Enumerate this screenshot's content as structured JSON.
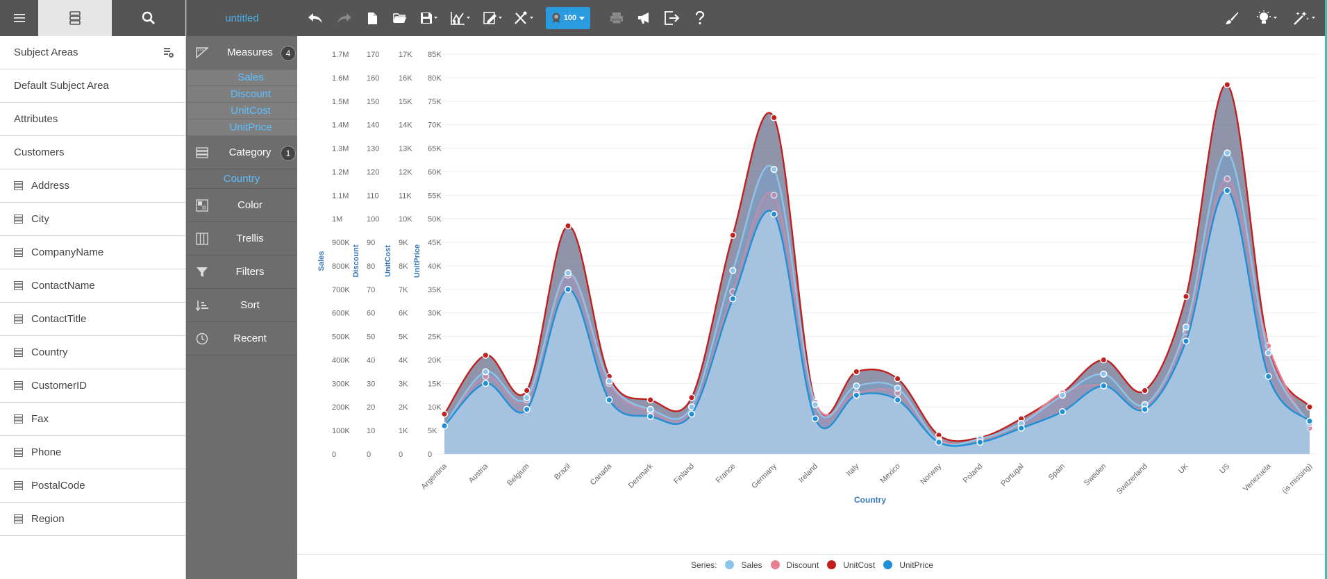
{
  "left": {
    "header_icons": [
      "menu-icon",
      "database-icon",
      "search-icon"
    ],
    "rows": [
      {
        "label": "Subject Areas",
        "icon": null
      },
      {
        "label": "Default Subject Area",
        "icon": null
      },
      {
        "label": "Attributes",
        "icon": null
      },
      {
        "label": "Customers",
        "icon": null
      },
      {
        "label": "Address",
        "icon": "attribute-icon"
      },
      {
        "label": "City",
        "icon": "attribute-icon"
      },
      {
        "label": "CompanyName",
        "icon": "attribute-icon"
      },
      {
        "label": "ContactName",
        "icon": "attribute-icon"
      },
      {
        "label": "ContactTitle",
        "icon": "attribute-icon"
      },
      {
        "label": "Country",
        "icon": "attribute-icon"
      },
      {
        "label": "CustomerID",
        "icon": "attribute-icon"
      },
      {
        "label": "Fax",
        "icon": "attribute-icon"
      },
      {
        "label": "Phone",
        "icon": "attribute-icon"
      },
      {
        "label": "PostalCode",
        "icon": "attribute-icon"
      },
      {
        "label": "Region",
        "icon": "attribute-icon"
      }
    ]
  },
  "mid": {
    "title": "untitled",
    "measures": {
      "label": "Measures",
      "count": "4",
      "items": [
        "Sales",
        "Discount",
        "UnitCost",
        "UnitPrice"
      ]
    },
    "category": {
      "label": "Category",
      "count": "1",
      "items": [
        "Country"
      ]
    },
    "color": {
      "label": "Color"
    },
    "trellis": {
      "label": "Trellis"
    },
    "filters": {
      "label": "Filters"
    },
    "sort": {
      "label": "Sort"
    },
    "recent": {
      "label": "Recent"
    }
  },
  "toolbar": {
    "badge": "100",
    "icons": [
      "undo-icon",
      "redo-icon",
      "new-file-icon",
      "open-folder-icon",
      "save-icon",
      "chart-type-icon",
      "edit-chart-icon",
      "tools-icon",
      "badge-icon",
      "print-icon",
      "announce-icon",
      "export-icon",
      "help-icon",
      "brush-icon",
      "lightbulb-icon",
      "magic-wand-icon"
    ]
  },
  "colors": {
    "sales": "#8cc4ec",
    "discount": "#e88091",
    "unitcost": "#c0201e",
    "unitprice": "#1f8fd6",
    "accent": "#4aaee8"
  },
  "chart_data": {
    "type": "area",
    "xlabel": "Country",
    "categories": [
      "Argentina",
      "Austria",
      "Belgium",
      "Brazil",
      "Canada",
      "Denmark",
      "Finland",
      "France",
      "Germany",
      "Ireland",
      "Italy",
      "Mexico",
      "Norway",
      "Poland",
      "Portugal",
      "Spain",
      "Sweden",
      "Switzerland",
      "UK",
      "US",
      "Venezuela",
      "(is missing)"
    ],
    "axes": [
      {
        "name": "Sales",
        "ticks": [
          "0",
          "100K",
          "200K",
          "300K",
          "400K",
          "500K",
          "600K",
          "700K",
          "800K",
          "900K",
          "1M",
          "1.1M",
          "1.2M",
          "1.3M",
          "1.4M",
          "1.5M",
          "1.6M",
          "1.7M"
        ],
        "ylim": [
          0,
          1700000
        ]
      },
      {
        "name": "Discount",
        "ticks": [
          "0",
          "10",
          "20",
          "30",
          "40",
          "50",
          "60",
          "70",
          "80",
          "90",
          "100",
          "110",
          "120",
          "130",
          "140",
          "150",
          "160",
          "170"
        ],
        "ylim": [
          0,
          170
        ]
      },
      {
        "name": "UnitCost",
        "ticks": [
          "0",
          "1K",
          "2K",
          "3K",
          "4K",
          "5K",
          "6K",
          "7K",
          "8K",
          "9K",
          "10K",
          "11K",
          "12K",
          "13K",
          "14K",
          "15K",
          "16K",
          "17K"
        ],
        "ylim": [
          0,
          17000
        ]
      },
      {
        "name": "UnitPrice",
        "ticks": [
          "0",
          "5K",
          "10K",
          "15K",
          "20K",
          "25K",
          "30K",
          "35K",
          "40K",
          "45K",
          "50K",
          "55K",
          "60K",
          "65K",
          "70K",
          "75K",
          "80K",
          "85K"
        ],
        "ylim": [
          0,
          85000
        ]
      }
    ],
    "series": [
      {
        "name": "Sales",
        "axis": 0,
        "values": [
          120000,
          350000,
          240000,
          770000,
          310000,
          190000,
          200000,
          780000,
          1210000,
          210000,
          290000,
          280000,
          55000,
          65000,
          130000,
          250000,
          340000,
          210000,
          540000,
          1280000,
          430000,
          130000
        ]
      },
      {
        "name": "Discount",
        "axis": 1,
        "values": [
          12,
          33,
          23,
          76,
          30,
          18,
          18,
          69,
          110,
          22,
          26,
          26,
          6,
          6,
          13,
          26,
          29,
          20,
          52,
          117,
          46,
          11
        ]
      },
      {
        "name": "UnitCost",
        "axis": 2,
        "values": [
          1700,
          4200,
          2700,
          9700,
          3300,
          2300,
          2400,
          9300,
          14300,
          2200,
          3500,
          3200,
          800,
          700,
          1500,
          2600,
          4000,
          2700,
          6700,
          15700,
          4600,
          2000
        ]
      },
      {
        "name": "UnitPrice",
        "axis": 3,
        "values": [
          6000,
          15000,
          9500,
          35000,
          11500,
          8000,
          8500,
          33000,
          51000,
          7500,
          12500,
          11500,
          2500,
          2500,
          5500,
          9000,
          14500,
          9500,
          24000,
          56000,
          16500,
          7000
        ]
      }
    ],
    "legend_title": "Series:",
    "legend": "bottom-center",
    "grid": true
  }
}
